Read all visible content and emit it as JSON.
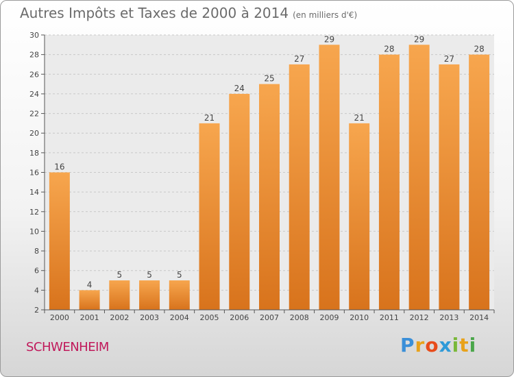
{
  "header": {
    "title": "Autres Impôts et Taxes de 2000 à 2014",
    "subtitle": "(en milliers d'€)"
  },
  "footer": {
    "commune": "SCHWENHEIM",
    "logo_letters": [
      "P",
      "r",
      "o",
      "x",
      "i",
      "t",
      "i"
    ],
    "logo_colors": [
      "#3a8fd8",
      "#e8a21b",
      "#e84c1b",
      "#2f9ad8",
      "#7ab83a",
      "#e8a21b",
      "#4aa64a"
    ]
  },
  "chart_data": {
    "type": "bar",
    "title": "Autres Impôts et Taxes de 2000 à 2014",
    "subtitle": "(en milliers d'€)",
    "xlabel": "",
    "ylabel": "",
    "categories": [
      "2000",
      "2001",
      "2002",
      "2003",
      "2004",
      "2005",
      "2006",
      "2007",
      "2008",
      "2009",
      "2010",
      "2011",
      "2012",
      "2013",
      "2014"
    ],
    "values": [
      16,
      4,
      5,
      5,
      5,
      21,
      24,
      25,
      27,
      29,
      21,
      28,
      29,
      27,
      28
    ],
    "ylim": [
      2,
      30
    ],
    "yticks": [
      2,
      4,
      6,
      8,
      10,
      12,
      14,
      16,
      18,
      20,
      22,
      24,
      26,
      28,
      30
    ],
    "grid": "horizontal-dashed",
    "bar_color_top": "#f7a64e",
    "bar_color_bottom": "#d8731c"
  }
}
